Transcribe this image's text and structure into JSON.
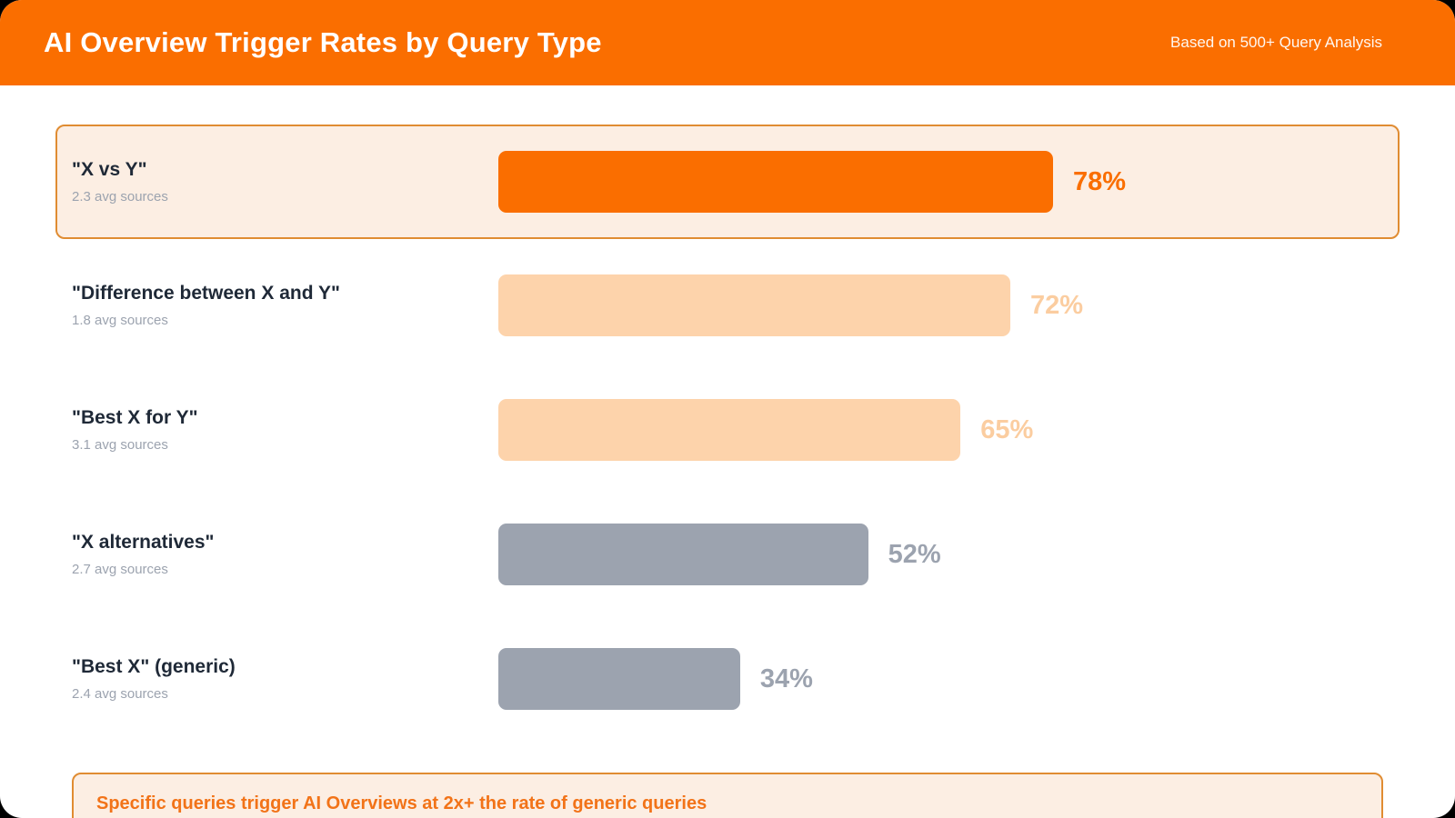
{
  "header": {
    "title": "AI Overview Trigger Rates by Query Type",
    "subtitle": "Based on 500+ Query Analysis",
    "bg_color": "#FA6E00"
  },
  "chart_data": {
    "type": "bar",
    "orientation": "horizontal",
    "title": "AI Overview Trigger Rates by Query Type",
    "subtitle": "Based on 500+ Query Analysis",
    "unit": "%",
    "xlim": [
      0,
      100
    ],
    "grid": false,
    "legend": false,
    "categories": [
      "\"X vs Y\"",
      "\"Difference between X and Y\"",
      "\"Best X for Y\"",
      "\"X alternatives\"",
      "\"Best X\" (generic)"
    ],
    "values": [
      78,
      72,
      65,
      52,
      34
    ],
    "avg_sources": [
      2.3,
      1.8,
      3.1,
      2.7,
      2.4
    ],
    "rows": [
      {
        "label": "\"X vs Y\"",
        "sublabel": "2.3 avg sources",
        "value": 78,
        "value_label": "78%",
        "bar_color": "#FA6E00",
        "value_color": "#FA6E00",
        "highlighted": true
      },
      {
        "label": "\"Difference between X and Y\"",
        "sublabel": "1.8 avg sources",
        "value": 72,
        "value_label": "72%",
        "bar_color": "#FDD3AB",
        "value_color": "#FBCDA0",
        "highlighted": false
      },
      {
        "label": "\"Best X for Y\"",
        "sublabel": "3.1 avg sources",
        "value": 65,
        "value_label": "65%",
        "bar_color": "#FDD3AB",
        "value_color": "#FBCDA0",
        "highlighted": false
      },
      {
        "label": "\"X alternatives\"",
        "sublabel": "2.7 avg sources",
        "value": 52,
        "value_label": "52%",
        "bar_color": "#9CA3AF",
        "value_color": "#9CA3AF",
        "highlighted": false
      },
      {
        "label": "\"Best X\" (generic)",
        "sublabel": "2.4 avg sources",
        "value": 34,
        "value_label": "34%",
        "bar_color": "#9CA3AF",
        "value_color": "#9CA3AF",
        "highlighted": false
      }
    ]
  },
  "callout": {
    "text": "Specific queries trigger AI Overviews at 2x+ the rate of generic queries",
    "text_color": "#F27318",
    "border_color": "#E08C32",
    "bg_color": "#FCEEE3"
  }
}
